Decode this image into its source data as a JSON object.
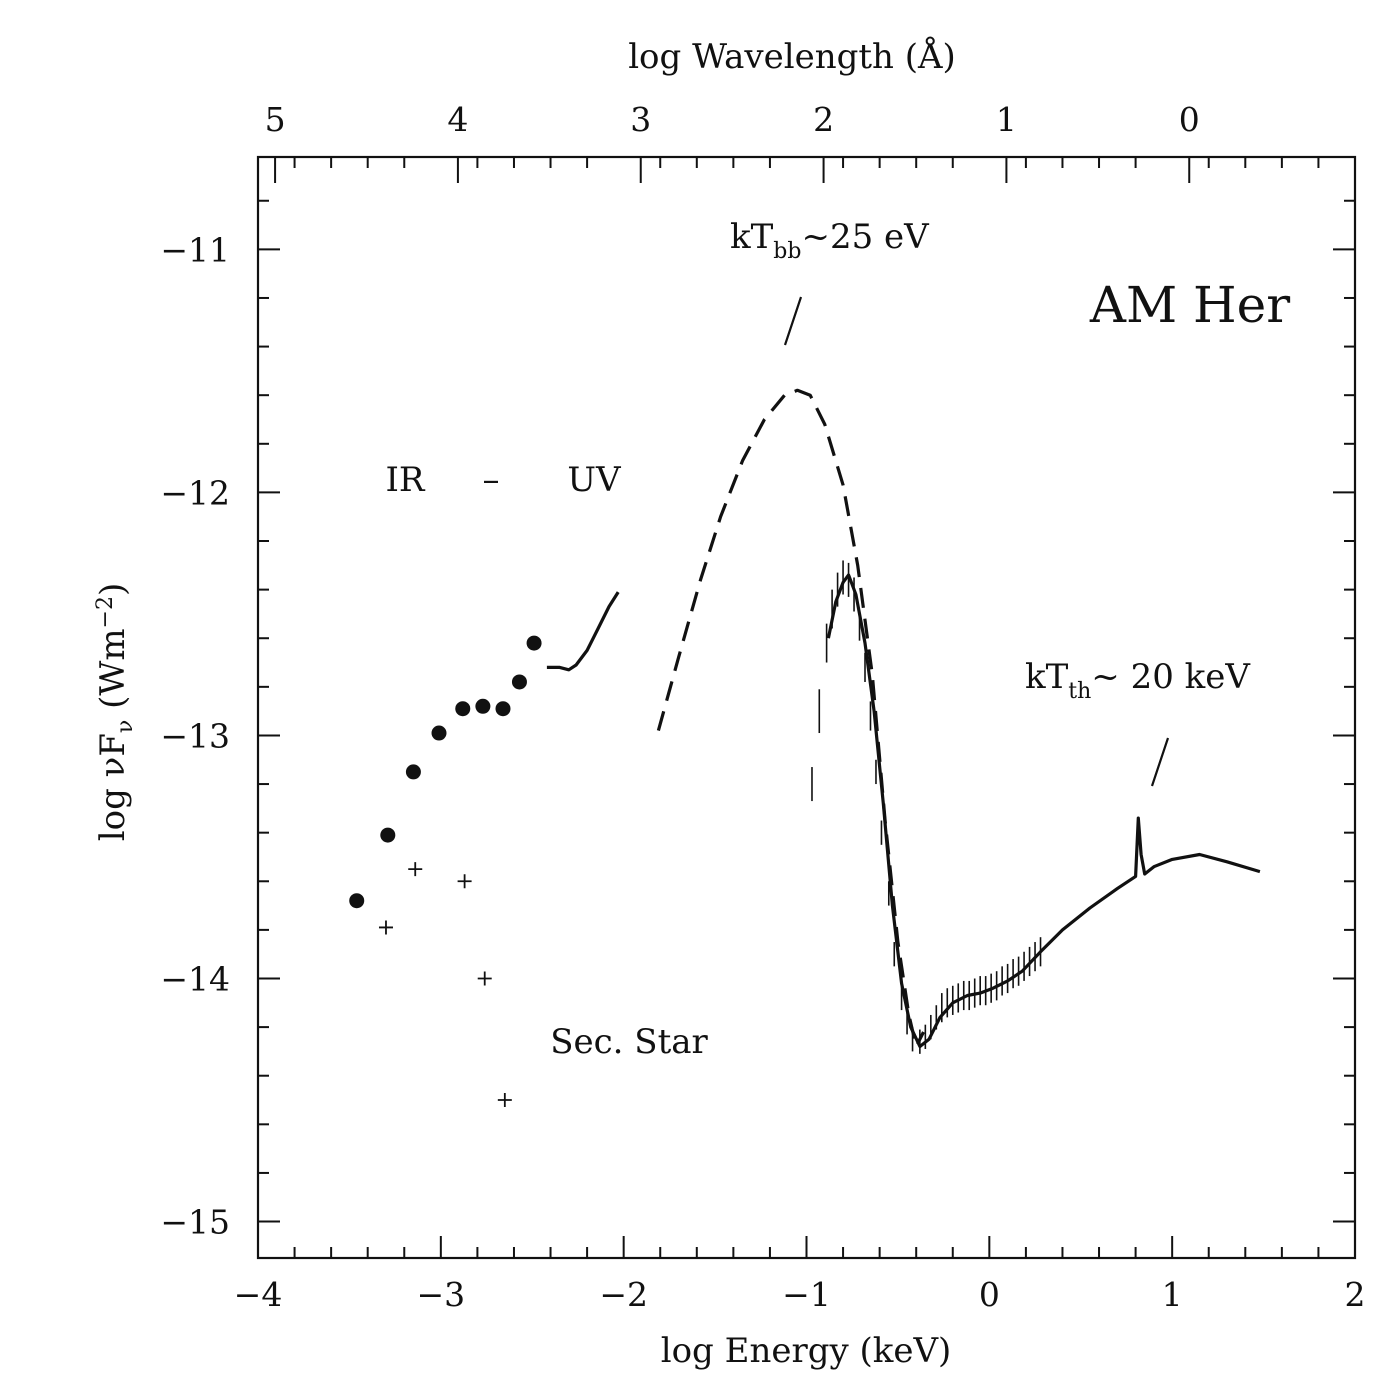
{
  "chart_data": {
    "type": "scatter",
    "title": "AM Her",
    "xlabel": "log Energy (keV)",
    "ylabel_parts": {
      "prefix": "log ",
      "nu": "ν",
      "F": "F",
      "sub": "ν",
      "unit": " (Wm",
      "exp": "−2",
      "close": ")"
    },
    "top_xlabel": "log Wavelength (Å)",
    "xlim": [
      -4,
      2
    ],
    "ylim": [
      -15.15,
      -10.62
    ],
    "x_ticks": [
      "−4",
      "−3",
      "−2",
      "−1",
      "0",
      "1",
      "2"
    ],
    "x_tick_values": [
      -4,
      -3,
      -2,
      -1,
      0,
      1,
      2
    ],
    "y_ticks": [
      "−11",
      "−12",
      "−13",
      "−14",
      "−15"
    ],
    "y_tick_values": [
      -11,
      -12,
      -13,
      -14,
      -15
    ],
    "top_ticks": [
      "5",
      "4",
      "3",
      "2",
      "1",
      "0"
    ],
    "top_tick_values": [
      5,
      4,
      3,
      2,
      1,
      0
    ],
    "grid": false,
    "series": [
      {
        "kind": "points-filled",
        "x": [
          -3.46,
          -3.29,
          -3.15,
          -3.01,
          -2.88,
          -2.77,
          -2.66,
          -2.57,
          -2.49
        ],
        "y": [
          -13.68,
          -13.41,
          -13.15,
          -12.99,
          -12.89,
          -12.88,
          -12.89,
          -12.78,
          -12.62
        ]
      },
      {
        "kind": "points-plus",
        "x": [
          -3.3,
          -3.14,
          -2.87,
          -2.76,
          -2.65
        ],
        "y": [
          -13.79,
          -13.55,
          -13.6,
          -14.0,
          -14.5
        ]
      },
      {
        "kind": "line-solid",
        "x": [
          -2.42,
          -2.35,
          -2.3,
          -2.26,
          -2.2,
          -2.14,
          -2.08,
          -2.03
        ],
        "y": [
          -12.72,
          -12.72,
          -12.73,
          -12.71,
          -12.65,
          -12.56,
          -12.47,
          -12.41
        ]
      },
      {
        "kind": "line-dashed",
        "x": [
          -1.81,
          -1.7,
          -1.58,
          -1.47,
          -1.35,
          -1.23,
          -1.12,
          -1.05,
          -0.98,
          -0.9,
          -0.8,
          -0.72,
          -0.64,
          -0.57,
          -0.5,
          -0.44,
          -0.4,
          -0.36
        ],
        "y": [
          -12.98,
          -12.68,
          -12.36,
          -12.1,
          -11.87,
          -11.7,
          -11.6,
          -11.58,
          -11.6,
          -11.72,
          -11.97,
          -12.3,
          -12.75,
          -13.35,
          -13.85,
          -14.15,
          -14.28,
          -14.22
        ]
      },
      {
        "kind": "line-solid",
        "x": [
          -0.88,
          -0.84,
          -0.8,
          -0.77,
          -0.73,
          -0.68,
          -0.63,
          -0.58,
          -0.53,
          -0.48,
          -0.43,
          -0.38,
          -0.33,
          -0.27,
          -0.2,
          -0.12,
          -0.05,
          0.02,
          0.1,
          0.18,
          0.28,
          0.4,
          0.55,
          0.7,
          0.8,
          0.815,
          0.83,
          0.85,
          0.9,
          1.0,
          1.15,
          1.3,
          1.48
        ],
        "y": [
          -12.6,
          -12.45,
          -12.37,
          -12.34,
          -12.42,
          -12.62,
          -12.9,
          -13.28,
          -13.7,
          -14.02,
          -14.2,
          -14.28,
          -14.25,
          -14.16,
          -14.1,
          -14.07,
          -14.06,
          -14.04,
          -14.01,
          -13.97,
          -13.89,
          -13.8,
          -13.71,
          -13.63,
          -13.58,
          -13.34,
          -13.49,
          -13.57,
          -13.54,
          -13.51,
          -13.49,
          -13.52,
          -13.56
        ]
      },
      {
        "kind": "error-ticks",
        "x": [
          -0.97,
          -0.93,
          -0.89,
          -0.86,
          -0.83,
          -0.8,
          -0.77,
          -0.74,
          -0.71,
          -0.68,
          -0.65,
          -0.62,
          -0.59,
          -0.55,
          -0.52,
          -0.48,
          -0.45,
          -0.42,
          -0.38,
          -0.35,
          -0.32,
          -0.29,
          -0.26,
          -0.23,
          -0.2,
          -0.17,
          -0.14,
          -0.11,
          -0.08,
          -0.05,
          -0.02,
          0.01,
          0.04,
          0.07,
          0.1,
          0.13,
          0.16,
          0.19,
          0.22,
          0.25,
          0.28
        ],
        "y": [
          -13.2,
          -12.9,
          -12.62,
          -12.48,
          -12.4,
          -12.35,
          -12.36,
          -12.42,
          -12.55,
          -12.72,
          -12.92,
          -13.15,
          -13.4,
          -13.65,
          -13.9,
          -14.08,
          -14.18,
          -14.25,
          -14.26,
          -14.24,
          -14.2,
          -14.16,
          -14.12,
          -14.1,
          -14.09,
          -14.08,
          -14.07,
          -14.07,
          -14.06,
          -14.05,
          -14.05,
          -14.04,
          -14.03,
          -14.01,
          -14.0,
          -13.98,
          -13.97,
          -13.95,
          -13.93,
          -13.91,
          -13.89
        ],
        "err": [
          0.07,
          0.09,
          0.08,
          0.08,
          0.07,
          0.07,
          0.07,
          0.07,
          0.06,
          0.06,
          0.06,
          0.05,
          0.05,
          0.05,
          0.05,
          0.05,
          0.05,
          0.05,
          0.05,
          0.05,
          0.05,
          0.05,
          0.06,
          0.06,
          0.06,
          0.06,
          0.06,
          0.06,
          0.06,
          0.06,
          0.06,
          0.06,
          0.06,
          0.06,
          0.06,
          0.06,
          0.06,
          0.06,
          0.06,
          0.06,
          0.06
        ]
      }
    ],
    "annotations": {
      "ir": "IR",
      "dash": "–",
      "uv": "UV",
      "sec_star": "Sec. Star",
      "kt_bb": {
        "k": "kT",
        "sub": "bb",
        "rest": "~25 eV"
      },
      "kt_th": {
        "k": "kT",
        "sub": "th",
        "rest": "~ 20 keV"
      },
      "object": "AM Her"
    }
  }
}
